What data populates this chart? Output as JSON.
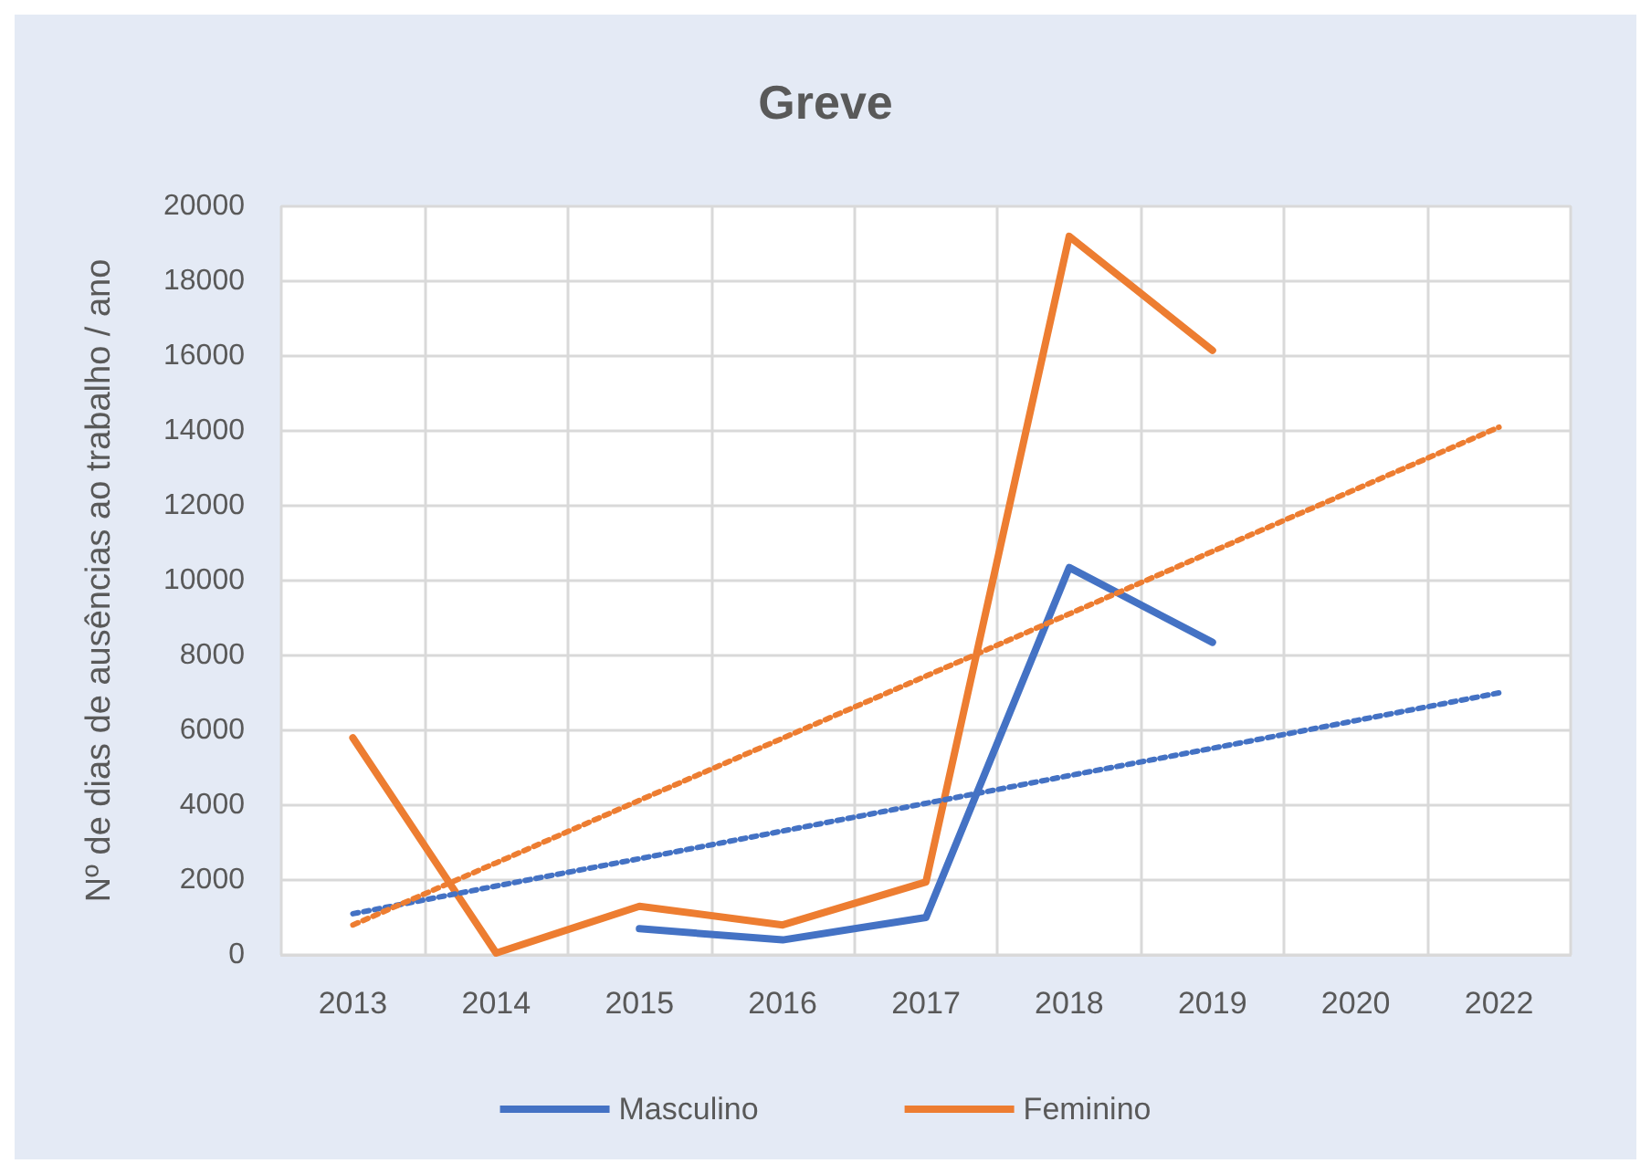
{
  "chart_data": {
    "type": "line",
    "title": "Greve",
    "ylabel": "Nº de dias de ausências ao trabalho / ano",
    "categories": [
      "2013",
      "2014",
      "2015",
      "2016",
      "2017",
      "2018",
      "2019",
      "2020",
      "2022"
    ],
    "series": [
      {
        "name": "Masculino",
        "color": "#4472c4",
        "values": [
          null,
          null,
          700,
          400,
          1000,
          10350,
          8350,
          null,
          null
        ]
      },
      {
        "name": "Feminino",
        "color": "#ed7d31",
        "values": [
          5800,
          50,
          1300,
          800,
          1950,
          19200,
          16150,
          null,
          null
        ]
      },
      {
        "color": "#4472c4",
        "line_style": "dotted",
        "values": [
          1100,
          1840,
          2570,
          3310,
          4050,
          4790,
          5520,
          6260,
          7000
        ]
      },
      {
        "color": "#ed7d31",
        "line_style": "dotted",
        "values": [
          800,
          2460,
          4130,
          5790,
          7450,
          9110,
          10780,
          12440,
          14100
        ]
      }
    ],
    "ylim": [
      0,
      20000
    ],
    "yticks": [
      0,
      2000,
      4000,
      6000,
      8000,
      10000,
      12000,
      14000,
      16000,
      18000,
      20000
    ],
    "grid": true,
    "legend": "bottom",
    "marker": "none",
    "line_style": "solid"
  }
}
